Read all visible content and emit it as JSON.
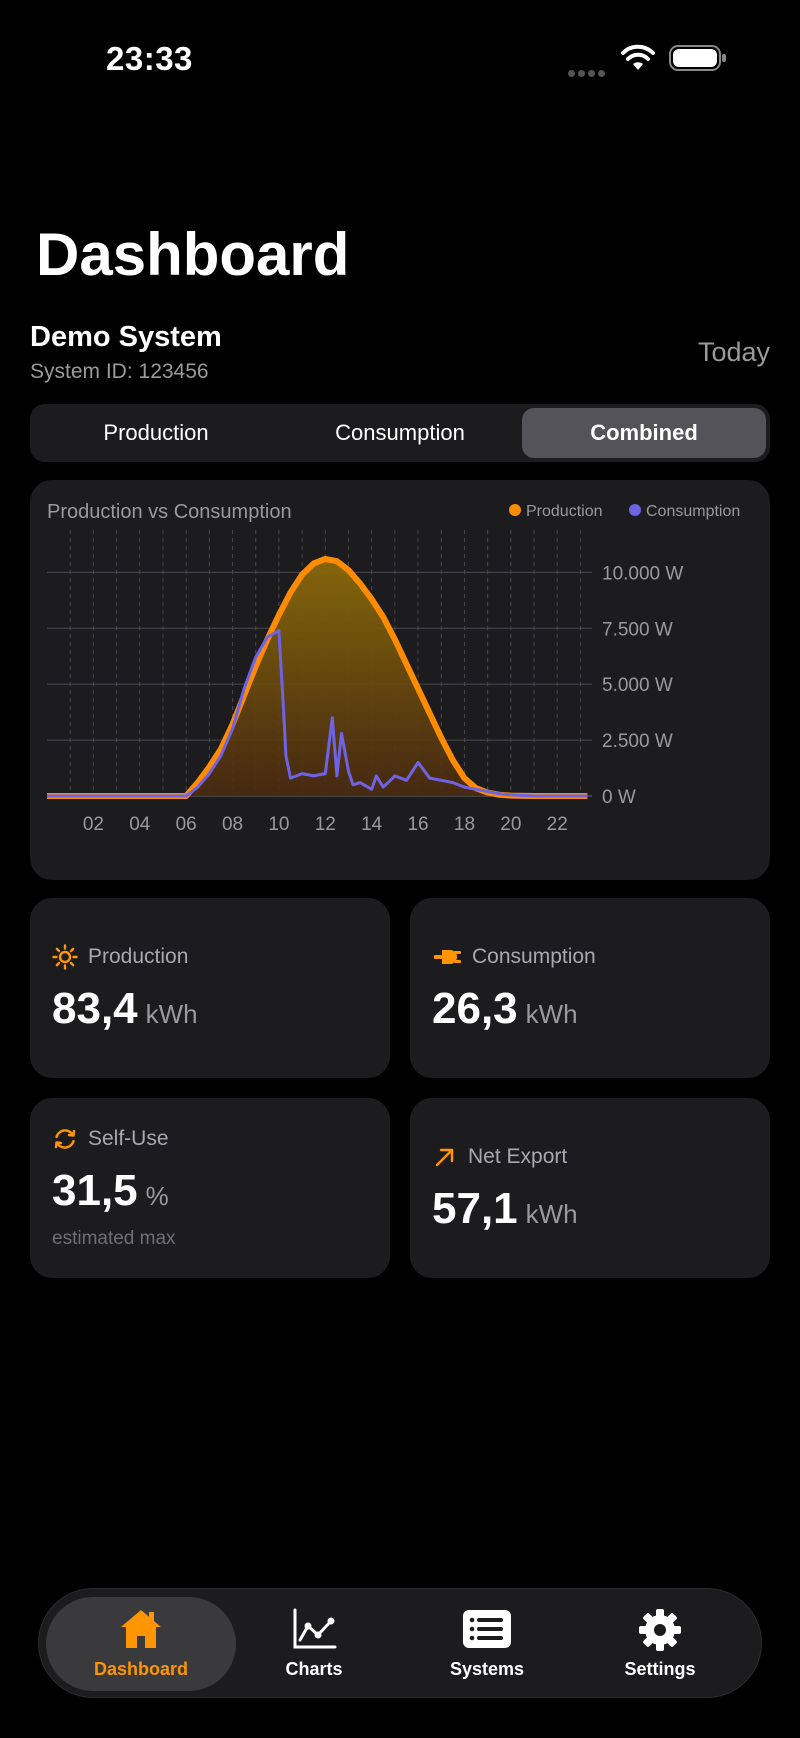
{
  "status_bar": {
    "time": "23:33"
  },
  "header": {
    "title": "Dashboard"
  },
  "system": {
    "name": "Demo System",
    "id_text": "System ID: 123456",
    "range": "Today"
  },
  "segmented": {
    "items": [
      "Production",
      "Consumption",
      "Combined"
    ],
    "selected": "Combined"
  },
  "colors": {
    "accent": "#ff9500",
    "production": "#ff8c00",
    "consumption": "#6e62e5",
    "card": "#1c1c1e"
  },
  "chart": {
    "title": "Production vs Consumption",
    "legend": [
      "Production",
      "Consumption"
    ]
  },
  "chart_data": {
    "type": "area",
    "title": "Production vs Consumption",
    "xlabel": "",
    "ylabel": "",
    "x_ticks": [
      "02",
      "04",
      "06",
      "08",
      "10",
      "12",
      "14",
      "16",
      "18",
      "20",
      "22"
    ],
    "y_ticks": [
      "0 W",
      "2.500 W",
      "5.000 W",
      "7.500 W",
      "10.000 W"
    ],
    "xlim": [
      0,
      23.5
    ],
    "ylim": [
      0,
      11000
    ],
    "legend_position": "top-right",
    "grid": true,
    "series": [
      {
        "name": "Production",
        "x": [
          0,
          6,
          6.5,
          7,
          7.5,
          8,
          8.5,
          9,
          9.5,
          10,
          10.5,
          11,
          11.5,
          12,
          12.5,
          13,
          13.5,
          14,
          14.5,
          15,
          15.5,
          16,
          16.5,
          17,
          17.5,
          18,
          18.5,
          19,
          19.5,
          20,
          21,
          22,
          23.3
        ],
        "y": [
          0,
          0,
          600,
          1300,
          2100,
          3200,
          4500,
          5800,
          7000,
          8100,
          9100,
          9900,
          10400,
          10600,
          10500,
          10100,
          9500,
          8800,
          8000,
          7000,
          5900,
          4800,
          3700,
          2600,
          1600,
          800,
          350,
          150,
          60,
          20,
          0,
          0,
          0
        ]
      },
      {
        "name": "Consumption",
        "x": [
          0,
          6,
          6.5,
          7,
          7.5,
          8,
          8.5,
          9,
          9.5,
          10,
          10.2,
          10.3,
          10.5,
          11,
          11.5,
          12,
          12.3,
          12.5,
          12.7,
          13,
          13.2,
          13.5,
          14,
          14.2,
          14.5,
          15,
          15.5,
          16,
          16.5,
          17,
          17.5,
          18,
          18.5,
          19,
          19.5,
          20,
          21,
          22,
          23.3
        ],
        "y": [
          0,
          0,
          400,
          1000,
          1800,
          3000,
          4800,
          6200,
          7100,
          7400,
          3800,
          1800,
          800,
          1000,
          900,
          1000,
          3500,
          900,
          2800,
          1100,
          500,
          600,
          300,
          900,
          400,
          900,
          700,
          1500,
          800,
          700,
          600,
          400,
          300,
          200,
          100,
          50,
          0,
          0,
          0
        ]
      }
    ]
  },
  "stats": {
    "production": {
      "label": "Production",
      "value": "83,4",
      "unit": "kWh"
    },
    "consumption": {
      "label": "Consumption",
      "value": "26,3",
      "unit": "kWh"
    },
    "self_use": {
      "label": "Self-Use",
      "value": "31,5",
      "unit": "%",
      "note": "estimated max"
    },
    "net_export": {
      "label": "Net Export",
      "value": "57,1",
      "unit": "kWh"
    }
  },
  "tabbar": {
    "items": [
      {
        "label": "Dashboard",
        "icon": "house-icon"
      },
      {
        "label": "Charts",
        "icon": "line-chart-icon"
      },
      {
        "label": "Systems",
        "icon": "list-icon"
      },
      {
        "label": "Settings",
        "icon": "gear-icon"
      }
    ],
    "selected": "Dashboard"
  }
}
